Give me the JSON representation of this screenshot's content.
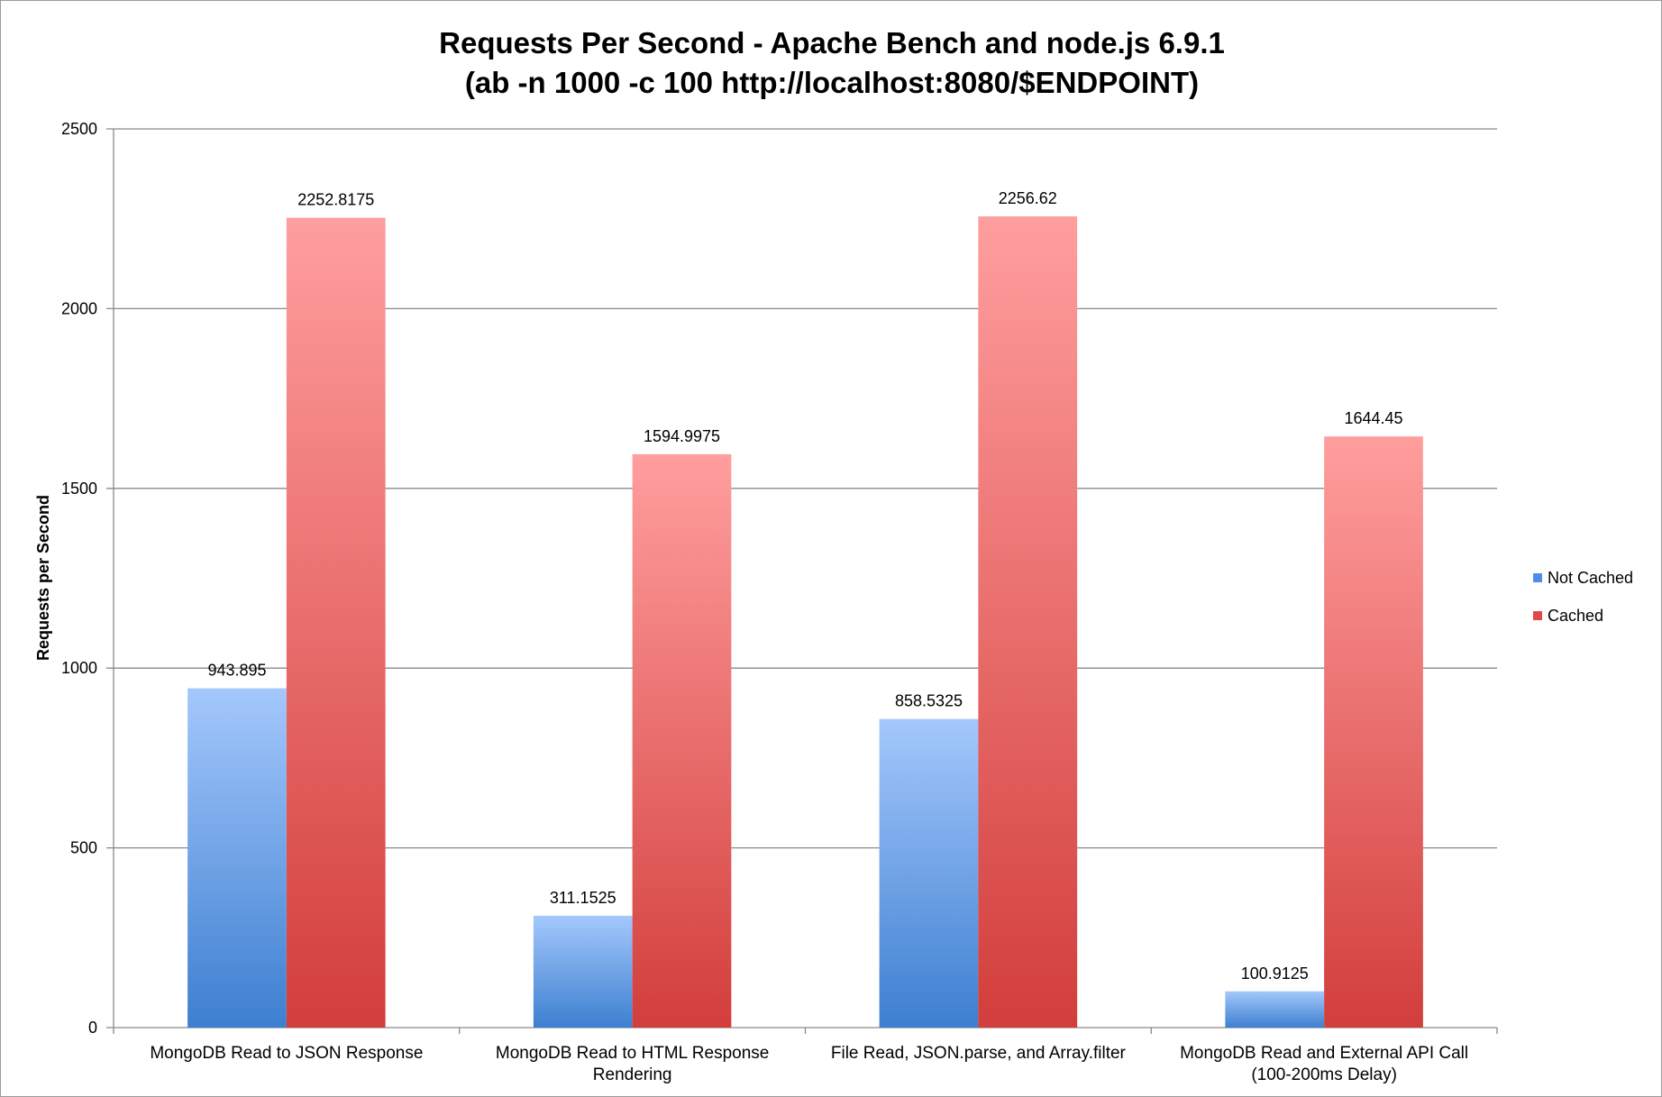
{
  "chart_data": {
    "type": "bar",
    "title_lines": [
      "Requests Per Second - Apache Bench and node.js 6.9.1",
      "(ab -n 1000 -c 100 http://localhost:8080/$ENDPOINT)"
    ],
    "xlabel": "",
    "ylabel": "Requests per Second",
    "ylim": [
      0,
      2500
    ],
    "yticks": [
      0,
      500,
      1000,
      1500,
      2000,
      2500
    ],
    "grid": true,
    "legend_position": "right",
    "categories": [
      [
        "MongoDB Read to JSON Response"
      ],
      [
        "MongoDB Read to HTML Response",
        "Rendering"
      ],
      [
        "File Read, JSON.parse, and Array.filter"
      ],
      [
        "MongoDB Read and External API Call",
        "(100-200ms  Delay)"
      ]
    ],
    "series": [
      {
        "name": "Not Cached",
        "values": [
          943.895,
          311.1525,
          858.5325,
          100.9125
        ],
        "labels": [
          "943.895",
          "311.1525",
          "858.5325",
          "100.9125"
        ],
        "color_light": "#a4c8fc",
        "color_dark": "#3d7fd0",
        "legend_color": "#4f8ee6"
      },
      {
        "name": "Cached",
        "values": [
          2252.8175,
          1594.9975,
          2256.62,
          1644.45
        ],
        "labels": [
          "2252.8175",
          "1594.9975",
          "2256.62",
          "1644.45"
        ],
        "color_light": "#ff9e9e",
        "color_dark": "#d23e3b",
        "legend_color": "#e04a46"
      }
    ]
  }
}
